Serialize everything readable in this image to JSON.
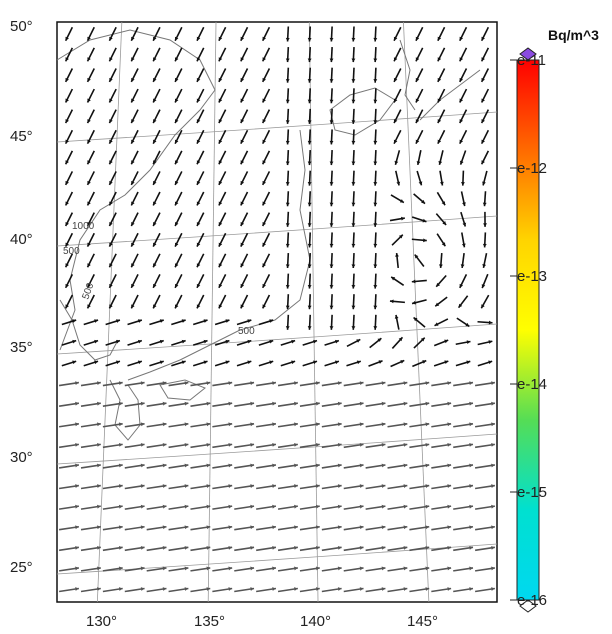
{
  "map": {
    "lat_labels": [
      "50°",
      "45°",
      "40°",
      "35°",
      "30°",
      "25°"
    ],
    "lon_labels": [
      "130°",
      "135°",
      "140°",
      "145°"
    ],
    "contour_labels": [
      "1000",
      "500",
      "500",
      "500"
    ],
    "vector_field": "surface wind vectors; easterly/northeasterly flow near Japan, anticyclonic eddy east of Honshu, westerly flow in south"
  },
  "colorbar": {
    "title": "Bq/m^3",
    "tick_labels": [
      "e-11",
      "e-12",
      "e-13",
      "e-14",
      "e-15",
      "e-16"
    ],
    "exponents": [
      -11,
      -12,
      -13,
      -14,
      -15,
      -16
    ],
    "colors": [
      "#ff0000",
      "#ff6a00",
      "#ffd400",
      "#ffff00",
      "#55dd55",
      "#00e0d0",
      "#00d8f0"
    ]
  }
}
